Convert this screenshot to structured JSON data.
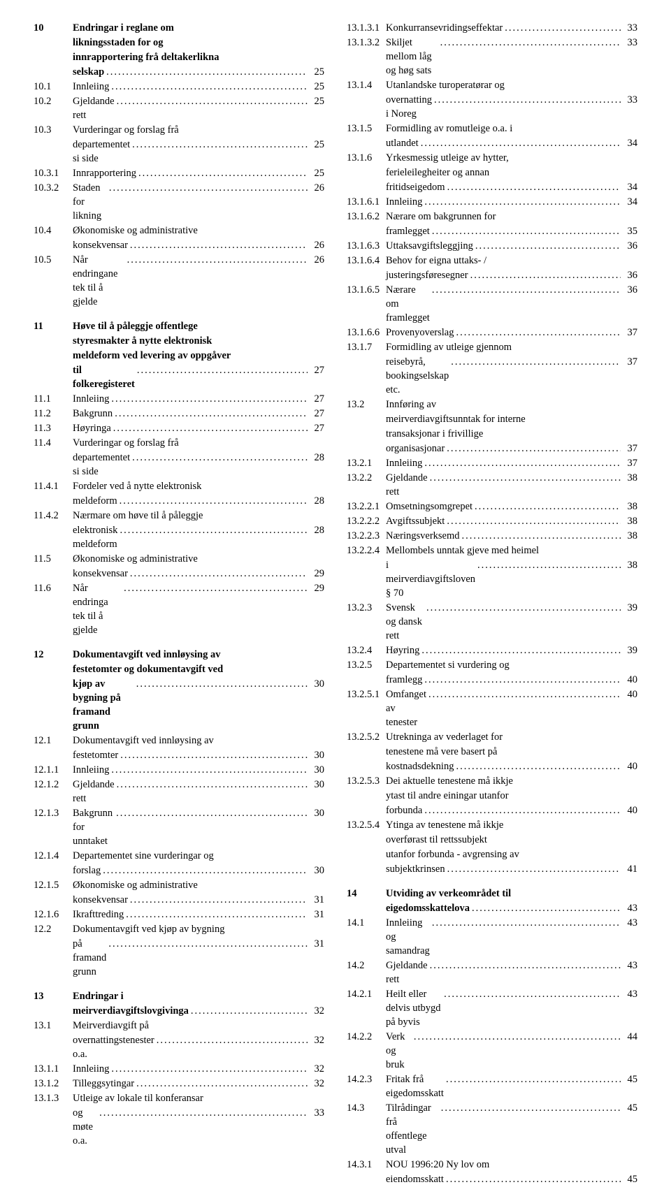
{
  "leftColumn": [
    {
      "type": "entry",
      "num": "10",
      "bold": true,
      "title": "Endringar i reglane om likningsstaden for og innrapportering frå deltakerlikna selskap",
      "page": "25",
      "width": "w0",
      "multiline": true
    },
    {
      "type": "entry",
      "num": "10.1",
      "title": "Innleiing",
      "page": "25",
      "width": "w1"
    },
    {
      "type": "entry",
      "num": "10.2",
      "title": "Gjeldande rett",
      "page": "25",
      "width": "w1"
    },
    {
      "type": "entry",
      "num": "10.3",
      "title": "Vurderingar og forslag frå departementet si side",
      "page": "25",
      "width": "w1",
      "multiline": true
    },
    {
      "type": "entry",
      "num": "10.3.1",
      "title": "Innrapportering",
      "page": "25",
      "width": "w2"
    },
    {
      "type": "entry",
      "num": "10.3.2",
      "title": "Staden for likning",
      "page": "26",
      "width": "w2"
    },
    {
      "type": "entry",
      "num": "10.4",
      "title": "Økonomiske og administrative konsekvensar",
      "page": "26",
      "width": "w1",
      "multiline": true
    },
    {
      "type": "entry",
      "num": "10.5",
      "title": "Når endringane tek til å gjelde",
      "page": "26",
      "width": "w1"
    },
    {
      "type": "gap"
    },
    {
      "type": "entry",
      "num": "11",
      "bold": true,
      "title": "Høve til å påleggje offentlege styresmakter å nytte elektronisk meldeform ved levering av oppgåver til folkeregisteret",
      "page": "27",
      "width": "w0",
      "multiline": true
    },
    {
      "type": "entry",
      "num": "11.1",
      "title": "Innleiing",
      "page": "27",
      "width": "w1"
    },
    {
      "type": "entry",
      "num": "11.2",
      "title": "Bakgrunn",
      "page": "27",
      "width": "w1"
    },
    {
      "type": "entry",
      "num": "11.3",
      "title": "Høyringa",
      "page": "27",
      "width": "w1"
    },
    {
      "type": "entry",
      "num": "11.4",
      "title": "Vurderingar og forslag frå departementet si side",
      "page": "28",
      "width": "w1",
      "multiline": true
    },
    {
      "type": "entry",
      "num": "11.4.1",
      "title": "Fordeler ved å nytte elektronisk meldeform",
      "page": "28",
      "width": "w2",
      "multiline": true
    },
    {
      "type": "entry",
      "num": "11.4.2",
      "title": "Nærmare om høve til å påleggje elektronisk meldeform",
      "page": "28",
      "width": "w2",
      "multiline": true
    },
    {
      "type": "entry",
      "num": "11.5",
      "title": "Økonomiske og administrative konsekvensar",
      "page": "29",
      "width": "w1",
      "multiline": true
    },
    {
      "type": "entry",
      "num": "11.6",
      "title": "Når endringa tek til å gjelde",
      "page": "29",
      "width": "w1"
    },
    {
      "type": "gap"
    },
    {
      "type": "entry",
      "num": "12",
      "bold": true,
      "title": "Dokumentavgift ved innløysing av festetomter og dokumentavgift ved kjøp av bygning på framand grunn",
      "page": "30",
      "width": "w0",
      "multiline": true
    },
    {
      "type": "entry",
      "num": "12.1",
      "title": "Dokumentavgift ved innløysing av festetomter",
      "page": "30",
      "width": "w1",
      "multiline": true
    },
    {
      "type": "entry",
      "num": "12.1.1",
      "title": "Innleiing",
      "page": "30",
      "width": "w2"
    },
    {
      "type": "entry",
      "num": "12.1.2",
      "title": "Gjeldande rett",
      "page": "30",
      "width": "w2"
    },
    {
      "type": "entry",
      "num": "12.1.3",
      "title": "Bakgrunn for unntaket",
      "page": "30",
      "width": "w2"
    },
    {
      "type": "entry",
      "num": "12.1.4",
      "title": "Departementet sine vurderingar og forslag",
      "page": "30",
      "width": "w2",
      "multiline": true
    },
    {
      "type": "entry",
      "num": "12.1.5",
      "title": "Økonomiske og administrative konsekvensar",
      "page": "31",
      "width": "w2",
      "multiline": true
    },
    {
      "type": "entry",
      "num": "12.1.6",
      "title": "Ikrafttreding",
      "page": "31",
      "width": "w2"
    },
    {
      "type": "entry",
      "num": "12.2",
      "title": "Dokumentavgift ved kjøp av bygning på framand grunn",
      "page": "31",
      "width": "w1",
      "multiline": true
    },
    {
      "type": "gap"
    },
    {
      "type": "entry",
      "num": "13",
      "bold": true,
      "title": "Endringar i meirverdiavgiftslovgivinga",
      "page": "32",
      "width": "w0",
      "multiline": true
    },
    {
      "type": "entry",
      "num": "13.1",
      "title": "Meirverdiavgift på overnattingstenester o.a.",
      "page": "32",
      "width": "w1",
      "multiline": true
    },
    {
      "type": "entry",
      "num": "13.1.1",
      "title": "Innleiing",
      "page": "32",
      "width": "w2"
    },
    {
      "type": "entry",
      "num": "13.1.2",
      "title": "Tilleggsytingar",
      "page": "32",
      "width": "w2"
    },
    {
      "type": "entry",
      "num": "13.1.3",
      "title": "Utleige av lokale til konferansar og møte o.a.",
      "page": "33",
      "width": "w2",
      "multiline": true
    }
  ],
  "rightColumn": [
    {
      "type": "entry",
      "num": "13.1.3.1",
      "title": "Konkurransevridingseffektar",
      "page": "33",
      "width": "w3"
    },
    {
      "type": "entry",
      "num": "13.1.3.2",
      "title": "Skiljet mellom låg og høg sats",
      "page": "33",
      "width": "w3"
    },
    {
      "type": "entry",
      "num": "13.1.4",
      "title": "Utanlandske turoperatørar og overnatting i Noreg",
      "page": "33",
      "width": "w2",
      "multiline": true
    },
    {
      "type": "entry",
      "num": "13.1.5",
      "title": "Formidling av romutleige o.a. i utlandet",
      "page": "34",
      "width": "w2",
      "multiline": true
    },
    {
      "type": "entry",
      "num": "13.1.6",
      "title": "Yrkesmessig utleige av hytter, ferieleilegheiter og annan fritidseigedom",
      "page": "34",
      "width": "w2",
      "multiline": true
    },
    {
      "type": "entry",
      "num": "13.1.6.1",
      "title": "Innleiing",
      "page": "34",
      "width": "w3"
    },
    {
      "type": "entry",
      "num": "13.1.6.2",
      "title": "Nærare om bakgrunnen for framlegget",
      "page": "35",
      "width": "w3",
      "multiline": true
    },
    {
      "type": "entry",
      "num": "13.1.6.3",
      "title": "Uttaksavgiftsleggjing",
      "page": "36",
      "width": "w3"
    },
    {
      "type": "entry",
      "num": "13.1.6.4",
      "title": "Behov for eigna uttaks- / justeringsføresegner",
      "page": "36",
      "width": "w3",
      "multiline": true
    },
    {
      "type": "entry",
      "num": "13.1.6.5",
      "title": "Nærare om framlegget",
      "page": "36",
      "width": "w3"
    },
    {
      "type": "entry",
      "num": "13.1.6.6",
      "title": "Provenyoverslag",
      "page": "37",
      "width": "w3"
    },
    {
      "type": "entry",
      "num": "13.1.7",
      "title": "Formidling av utleige gjennom reisebyrå, bookingselskap etc.",
      "page": "37",
      "width": "w2",
      "multiline": true
    },
    {
      "type": "entry",
      "num": "13.2",
      "title": "Innføring av meirverdiavgiftsunntak for interne transaksjonar i frivillige organisasjonar",
      "page": "37",
      "width": "w1",
      "multiline": true
    },
    {
      "type": "entry",
      "num": "13.2.1",
      "title": "Innleiing",
      "page": "37",
      "width": "w2"
    },
    {
      "type": "entry",
      "num": "13.2.2",
      "title": "Gjeldande rett",
      "page": "38",
      "width": "w2"
    },
    {
      "type": "entry",
      "num": "13.2.2.1",
      "title": "Omsetningsomgrepet",
      "page": "38",
      "width": "w3"
    },
    {
      "type": "entry",
      "num": "13.2.2.2",
      "title": "Avgiftssubjekt",
      "page": "38",
      "width": "w3"
    },
    {
      "type": "entry",
      "num": "13.2.2.3",
      "title": "Næringsverksemd",
      "page": "38",
      "width": "w3"
    },
    {
      "type": "entry",
      "num": "13.2.2.4",
      "title": "Mellombels unntak gjeve med heimel i meirverdiavgiftsloven § 70",
      "page": "38",
      "width": "w3",
      "multiline": true
    },
    {
      "type": "entry",
      "num": "13.2.3",
      "title": "Svensk og dansk rett",
      "page": "39",
      "width": "w2"
    },
    {
      "type": "entry",
      "num": "13.2.4",
      "title": "Høyring",
      "page": "39",
      "width": "w2"
    },
    {
      "type": "entry",
      "num": "13.2.5",
      "title": "Departementet si vurdering og framlegg",
      "page": "40",
      "width": "w2",
      "multiline": true
    },
    {
      "type": "entry",
      "num": "13.2.5.1",
      "title": "Omfanget av tenester",
      "page": "40",
      "width": "w3"
    },
    {
      "type": "entry",
      "num": "13.2.5.2",
      "title": "Utrekninga av vederlaget for tenestene må vere basert på kostnadsdekning",
      "page": "40",
      "width": "w3",
      "multiline": true
    },
    {
      "type": "entry",
      "num": "13.2.5.3",
      "title": "Dei aktuelle tenestene må ikkje ytast til andre einingar utanfor forbunda",
      "page": "40",
      "width": "w3",
      "multiline": true
    },
    {
      "type": "entry",
      "num": "13.2.5.4",
      "title": "Ytinga av tenestene må ikkje overførast til rettssubjekt utanfor forbunda - avgrensing av subjektkrinsen",
      "page": "41",
      "width": "w3",
      "multiline": true
    },
    {
      "type": "gap"
    },
    {
      "type": "entry",
      "num": "14",
      "bold": true,
      "title": "Utviding av verkeområdet til eigedomsskattelova",
      "page": "43",
      "width": "w0",
      "multiline": true
    },
    {
      "type": "entry",
      "num": "14.1",
      "title": "Innleiing og samandrag",
      "page": "43",
      "width": "w1"
    },
    {
      "type": "entry",
      "num": "14.2",
      "title": "Gjeldande rett",
      "page": "43",
      "width": "w1"
    },
    {
      "type": "entry",
      "num": "14.2.1",
      "title": "Heilt eller delvis utbygd på byvis",
      "page": "43",
      "width": "w2"
    },
    {
      "type": "entry",
      "num": "14.2.2",
      "title": "Verk og bruk",
      "page": "44",
      "width": "w2"
    },
    {
      "type": "entry",
      "num": "14.2.3",
      "title": "Fritak frå eigedomsskatt",
      "page": "45",
      "width": "w2"
    },
    {
      "type": "entry",
      "num": "14.3",
      "title": "Tilrådingar frå offentlege utval",
      "page": "45",
      "width": "w1"
    },
    {
      "type": "entry",
      "num": "14.3.1",
      "title": "NOU 1996:20 Ny lov om eiendomsskatt",
      "page": "45",
      "width": "w2",
      "multiline": true
    }
  ]
}
